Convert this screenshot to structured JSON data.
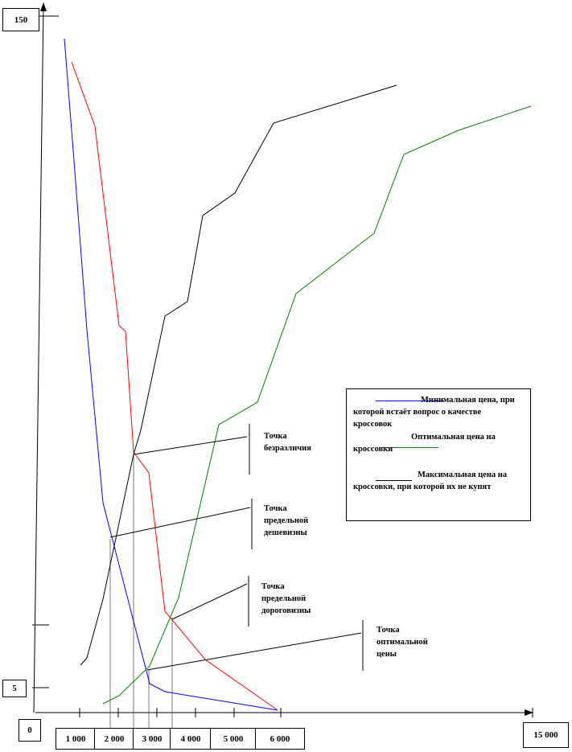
{
  "chart_data": {
    "type": "line",
    "x_axis": {
      "origin_label": "0",
      "tick_labels": [
        "1 000",
        "2 000",
        "3  000",
        "4 000",
        "5 000",
        "6 000"
      ],
      "end_label": "15 000"
    },
    "y_axis": {
      "top_label": "150",
      "bottom_label": "5"
    },
    "series": [
      {
        "name": "Минимальная цена, при которой встаёт вопрос о качестве кроссовок",
        "color": "#0000ff",
        "points": [
          [
            80,
            48
          ],
          [
            92,
            200
          ],
          [
            108,
            410
          ],
          [
            128,
            625
          ],
          [
            186,
            850
          ],
          [
            205,
            860
          ],
          [
            345,
            883
          ]
        ]
      },
      {
        "name": "Оптимальная цена на кроссовки",
        "color": "#008000",
        "points": [
          [
            128,
            875
          ],
          [
            148,
            865
          ],
          [
            186,
            828
          ],
          [
            222,
            743
          ],
          [
            272,
            528
          ],
          [
            320,
            500
          ],
          [
            368,
            365
          ],
          [
            465,
            290
          ],
          [
            502,
            192
          ],
          [
            570,
            162
          ],
          [
            660,
            132
          ]
        ]
      },
      {
        "name": "Максимальная цена на кроссовки, при которой их не купят",
        "color": "#ff0000",
        "points": [
          [
            89,
            77
          ],
          [
            118,
            157
          ],
          [
            148,
            405
          ],
          [
            156,
            412
          ],
          [
            166,
            562
          ],
          [
            185,
            588
          ],
          [
            205,
            760
          ],
          [
            255,
            820
          ],
          [
            345,
            883
          ]
        ]
      },
      {
        "name": "",
        "color": "#000000",
        "points": [
          [
            100,
            827
          ],
          [
            108,
            818
          ],
          [
            128,
            745
          ],
          [
            166,
            565
          ],
          [
            175,
            535
          ],
          [
            205,
            393
          ],
          [
            233,
            375
          ],
          [
            252,
            268
          ],
          [
            292,
            240
          ],
          [
            340,
            153
          ],
          [
            493,
            106
          ]
        ]
      }
    ],
    "callouts": [
      {
        "label": "Точка безразличия"
      },
      {
        "label": "Точка предельной дешевизны"
      },
      {
        "label": "Точка предельной дороговизны"
      },
      {
        "label": "Точка оптимальной цены"
      }
    ]
  }
}
